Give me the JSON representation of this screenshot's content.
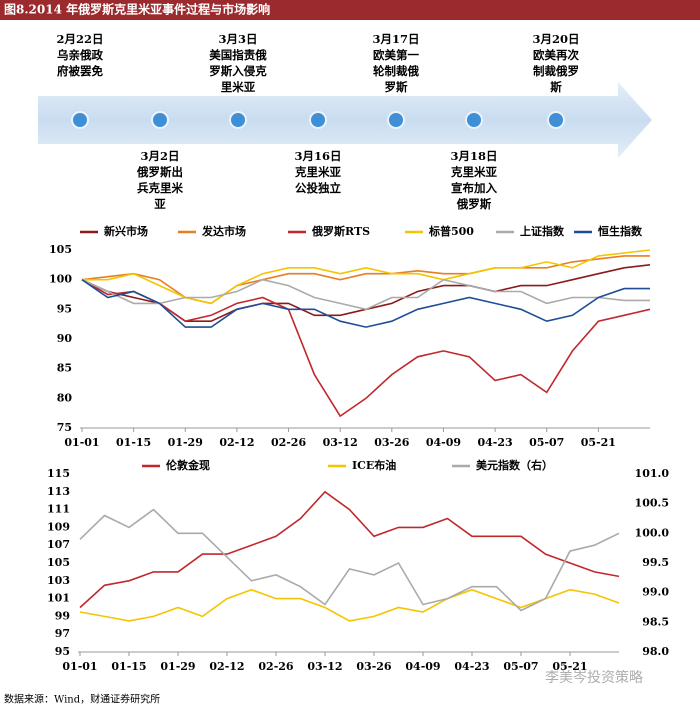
{
  "title": "图8.2014 年俄罗斯克里米亚事件过程与市场影响",
  "timeline": {
    "events": [
      {
        "date": "2月22日",
        "lines": [
          "乌亲俄政",
          "府被罢免"
        ]
      },
      {
        "date": "3月2日",
        "lines": [
          "俄罗斯出",
          "兵克里米",
          "亚"
        ]
      },
      {
        "date": "3月3日",
        "lines": [
          "美国指责俄",
          "罗斯入侵克",
          "里米亚"
        ]
      },
      {
        "date": "3月16日",
        "lines": [
          "克里米亚",
          "公投独立"
        ]
      },
      {
        "date": "3月17日",
        "lines": [
          "欧美第一",
          "轮制裁俄",
          "罗斯"
        ]
      },
      {
        "date": "3月18日",
        "lines": [
          "克里米亚",
          "宣布加入",
          "俄罗斯"
        ]
      },
      {
        "date": "3月20日",
        "lines": [
          "欧美再次",
          "制裁俄罗",
          "斯"
        ]
      }
    ]
  },
  "chart_data": [
    {
      "type": "line",
      "categories": [
        "01-01",
        null,
        "01-15",
        null,
        "01-29",
        null,
        "02-12",
        null,
        "02-26",
        null,
        "03-12",
        null,
        "03-26",
        null,
        "04-09",
        null,
        "04-23",
        null,
        "05-07",
        null,
        "05-21",
        null,
        null
      ],
      "ylim": [
        75,
        105
      ],
      "yticks": [
        75,
        80,
        85,
        90,
        95,
        100,
        105
      ],
      "series": [
        {
          "name": "新兴市场",
          "color": "#8b1a1a",
          "values": [
            100,
            98,
            97,
            96,
            93,
            93,
            95,
            96,
            96,
            94,
            94,
            95,
            96,
            98,
            99,
            99,
            98,
            99,
            99,
            100,
            101,
            102,
            102.5
          ]
        },
        {
          "name": "发达市场",
          "color": "#e67e22",
          "values": [
            100,
            100.5,
            101,
            100,
            97,
            96,
            99,
            100,
            101,
            101,
            100,
            101,
            101,
            101.5,
            101,
            101,
            102,
            102,
            102,
            103,
            103.5,
            104,
            104
          ]
        },
        {
          "name": "俄罗斯RTS",
          "color": "#c0282d",
          "values": [
            100,
            97.5,
            98,
            96,
            93,
            94,
            96,
            97,
            95,
            84,
            77,
            80,
            84,
            87,
            88,
            87,
            83,
            84,
            81,
            88,
            93,
            94,
            95
          ]
        },
        {
          "name": "标普500",
          "color": "#f5c400",
          "values": [
            100,
            100,
            101,
            99,
            97,
            96,
            99,
            101,
            102,
            102,
            101,
            102,
            101,
            101,
            100,
            101,
            102,
            102,
            103,
            102,
            104,
            104.5,
            105
          ]
        },
        {
          "name": "上证指数",
          "color": "#aaaaaa",
          "values": [
            100,
            98,
            96,
            96,
            97,
            97,
            98,
            100,
            99,
            97,
            96,
            95,
            97,
            97,
            100,
            99,
            98,
            98,
            96,
            97,
            97,
            96.5,
            96.5
          ]
        },
        {
          "name": "恒生指数",
          "color": "#1f4e96",
          "values": [
            100,
            97,
            98,
            96,
            92,
            92,
            95,
            96,
            95,
            95,
            93,
            92,
            93,
            95,
            96,
            97,
            96,
            95,
            93,
            94,
            97,
            98.5,
            98.5
          ]
        }
      ]
    },
    {
      "type": "line",
      "categories": [
        "01-01",
        null,
        "01-15",
        null,
        "01-29",
        null,
        "02-12",
        null,
        "02-26",
        null,
        "03-12",
        null,
        "03-26",
        null,
        "04-09",
        null,
        "04-23",
        null,
        "05-07",
        null,
        "05-21",
        null,
        null
      ],
      "ylim": [
        95,
        115
      ],
      "yticks": [
        95,
        97,
        99,
        101,
        103,
        105,
        107,
        109,
        111,
        113,
        115
      ],
      "y2lim": [
        98,
        101
      ],
      "y2ticks": [
        {
          "value": 98,
          "label": "98.0"
        },
        98.5,
        {
          "value": 99,
          "label": "99.0"
        },
        99.5,
        {
          "value": 100,
          "label": "100.0"
        },
        100.5,
        {
          "value": 101,
          "label": "101.0"
        }
      ],
      "series": [
        {
          "name": "伦敦金现",
          "color": "#c0282d",
          "values": [
            100,
            102.5,
            103,
            104,
            104,
            106,
            106,
            107,
            108,
            110,
            113,
            111,
            108,
            109,
            109,
            110,
            108,
            108,
            108,
            106,
            105,
            104,
            103.5
          ]
        },
        {
          "name": "ICE布油",
          "color": "#f5c400",
          "values": [
            99.5,
            99,
            98.5,
            99,
            100,
            99,
            101,
            102,
            101,
            101,
            100,
            98.5,
            99,
            100,
            99.5,
            101,
            102,
            101,
            100,
            101,
            102,
            101.5,
            100.5
          ]
        },
        {
          "name": "美元指数（右）",
          "color": "#aaaaaa",
          "axis": "y2",
          "values": [
            99.9,
            100.3,
            100.1,
            100.4,
            100.0,
            100.0,
            99.6,
            99.2,
            99.3,
            99.1,
            98.8,
            99.4,
            99.3,
            99.5,
            98.8,
            98.9,
            99.1,
            99.1,
            98.7,
            98.9,
            99.7,
            99.8,
            100.0
          ]
        }
      ]
    }
  ],
  "source": "数据来源：Wind，财通证券研究所",
  "watermark": "李美岑投资策略"
}
